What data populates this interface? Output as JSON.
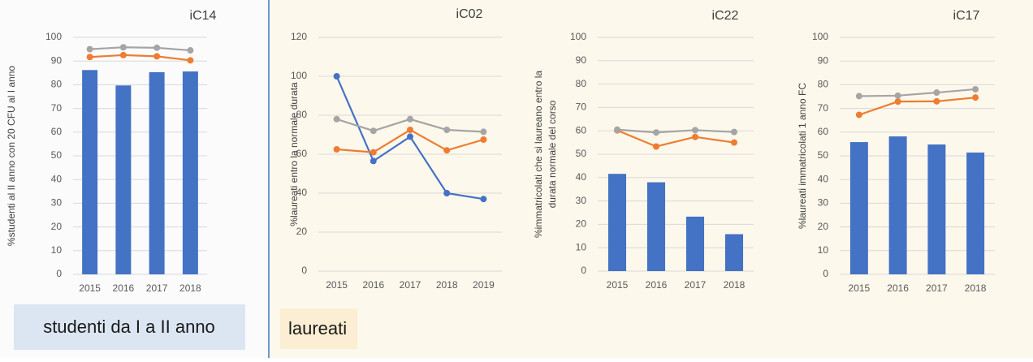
{
  "panels": [
    {
      "label": "studenti da I a II anno"
    },
    {
      "label": "laureati"
    }
  ],
  "chart_data": [
    {
      "type": "bar",
      "title": "iC14",
      "y_label": "%studenti al II anno con 20 CFU al I anno",
      "categories": [
        "2015",
        "2016",
        "2017",
        "2018"
      ],
      "ylim": [
        0,
        100
      ],
      "yticks": [
        0,
        10,
        20,
        30,
        40,
        50,
        60,
        70,
        80,
        90,
        100
      ],
      "grid": true,
      "series": [
        {
          "type": "bar",
          "color": "#4472c4",
          "values": [
            86.2,
            79.7,
            85.3,
            85.6
          ]
        },
        {
          "type": "line",
          "color": "#ed7d31",
          "values": [
            91.7,
            92.5,
            92.0,
            90.3
          ]
        },
        {
          "type": "line",
          "color": "#a5a5a5",
          "values": [
            95.0,
            95.8,
            95.6,
            94.5
          ]
        }
      ]
    },
    {
      "type": "line",
      "title": "iC02",
      "y_label": "%laureati entro la normale durata",
      "categories": [
        "2015",
        "2016",
        "2017",
        "2018",
        "2019"
      ],
      "ylim": [
        0,
        120
      ],
      "yticks": [
        0,
        20,
        40,
        60,
        80,
        100,
        120
      ],
      "grid": true,
      "series": [
        {
          "type": "line",
          "color": "#4472c4",
          "values": [
            100,
            56.5,
            69,
            40,
            37
          ]
        },
        {
          "type": "line",
          "color": "#ed7d31",
          "values": [
            62.5,
            61,
            72.5,
            62,
            67.5
          ]
        },
        {
          "type": "line",
          "color": "#a5a5a5",
          "values": [
            78,
            72,
            78,
            72.5,
            71.5
          ]
        }
      ]
    },
    {
      "type": "bar",
      "title": "iC22",
      "y_label": [
        "%immatricolati che si laureano entro la",
        "durata normale del corso"
      ],
      "categories": [
        "2015",
        "2016",
        "2017",
        "2018"
      ],
      "ylim": [
        0,
        100
      ],
      "yticks": [
        0,
        10,
        20,
        30,
        40,
        50,
        60,
        70,
        80,
        90,
        100
      ],
      "grid": true,
      "series": [
        {
          "type": "bar",
          "color": "#4472c4",
          "values": [
            41.6,
            38.0,
            23.3,
            15.8
          ]
        },
        {
          "type": "line",
          "color": "#ed7d31",
          "values": [
            60.2,
            53.3,
            57.4,
            55.0
          ]
        },
        {
          "type": "line",
          "color": "#a5a5a5",
          "values": [
            60.5,
            59.3,
            60.3,
            59.5
          ]
        }
      ]
    },
    {
      "type": "bar",
      "title": "iC17",
      "y_label": "%laureati immatricolati 1 anno FC",
      "categories": [
        "2015",
        "2016",
        "2017",
        "2018"
      ],
      "ylim": [
        0,
        100
      ],
      "yticks": [
        0,
        10,
        20,
        30,
        40,
        50,
        60,
        70,
        80,
        90,
        100
      ],
      "grid": true,
      "series": [
        {
          "type": "bar",
          "color": "#4472c4",
          "values": [
            55.8,
            58.2,
            54.8,
            51.4
          ]
        },
        {
          "type": "line",
          "color": "#ed7d31",
          "values": [
            67.3,
            72.9,
            73.0,
            74.6
          ]
        },
        {
          "type": "line",
          "color": "#a5a5a5",
          "values": [
            75.2,
            75.4,
            76.7,
            78.1
          ]
        }
      ]
    }
  ]
}
